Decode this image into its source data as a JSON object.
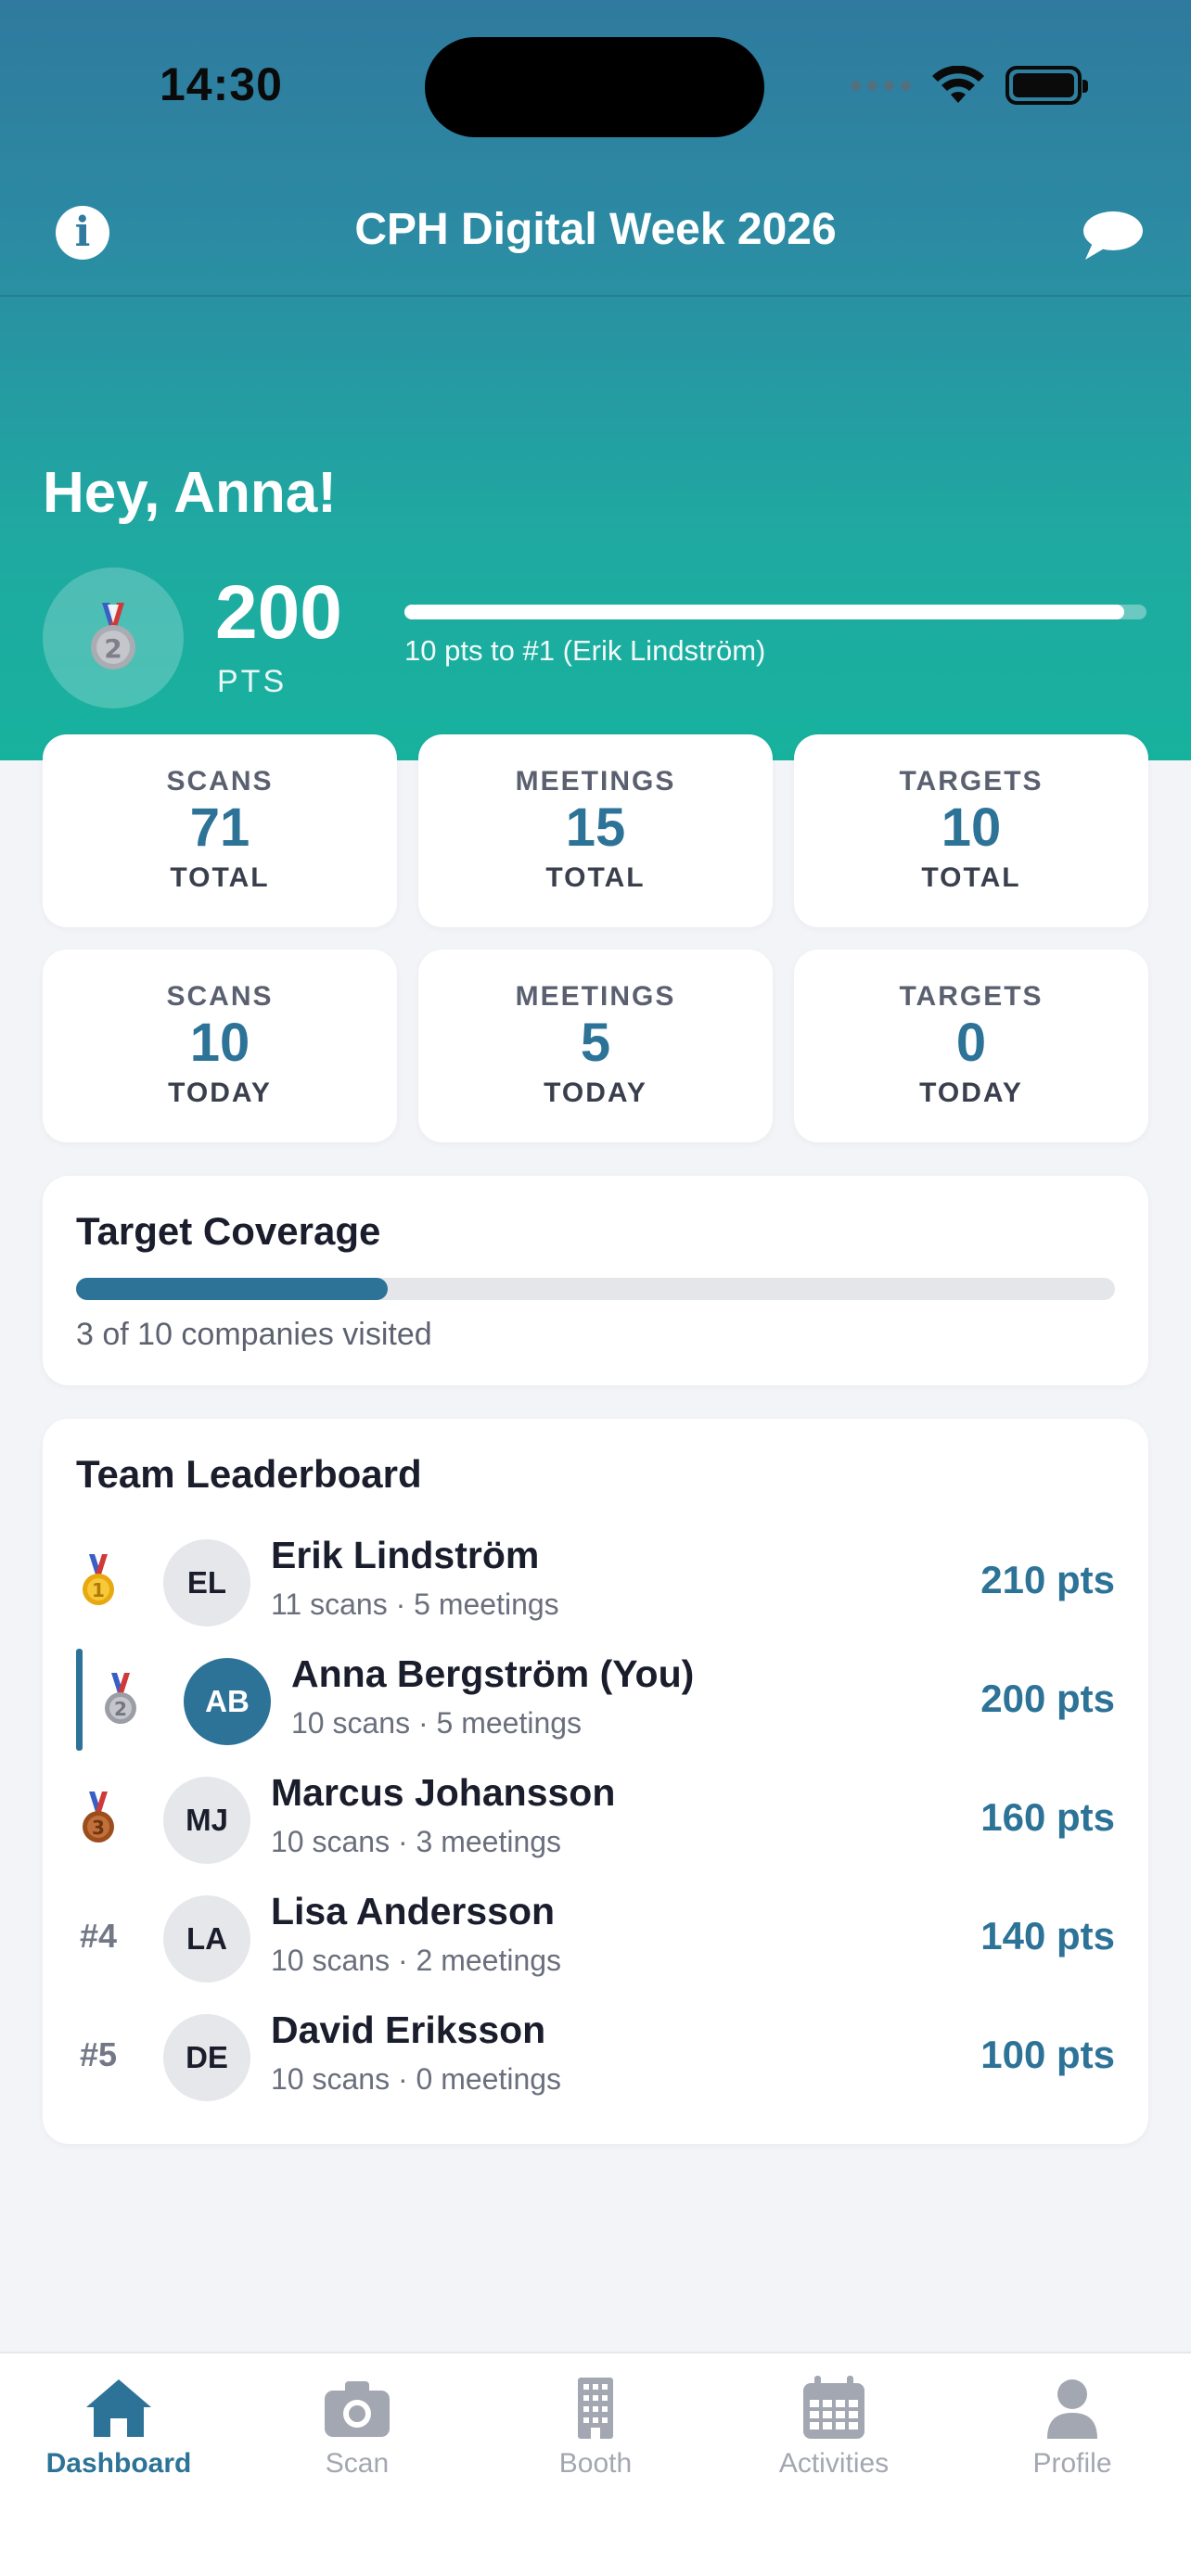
{
  "status_bar": {
    "time": "14:30"
  },
  "navbar": {
    "title": "CPH Digital Week 2026"
  },
  "hero": {
    "greeting": "Hey, Anna!",
    "points": "200",
    "points_unit": "PTS",
    "progress_fraction": 0.97,
    "progress_note": "10 pts to #1 (Erik Lindström)",
    "medal_rank": "2"
  },
  "stats": [
    {
      "label": "SCANS",
      "value": "71",
      "sub": "TOTAL"
    },
    {
      "label": "MEETINGS",
      "value": "15",
      "sub": "TOTAL"
    },
    {
      "label": "TARGETS",
      "value": "10",
      "sub": "TOTAL"
    },
    {
      "label": "SCANS",
      "value": "10",
      "sub": "TODAY"
    },
    {
      "label": "MEETINGS",
      "value": "5",
      "sub": "TODAY"
    },
    {
      "label": "TARGETS",
      "value": "0",
      "sub": "TODAY"
    }
  ],
  "coverage": {
    "title": "Target Coverage",
    "fraction": 0.3,
    "note": "3 of 10 companies visited"
  },
  "leaderboard": {
    "title": "Team Leaderboard",
    "rows": [
      {
        "rank": "1",
        "initials": "EL",
        "name": "Erik Lindström",
        "meta": "11 scans · 5 meetings",
        "points": "210 pts"
      },
      {
        "rank": "2",
        "initials": "AB",
        "name": "Anna Bergström (You)",
        "meta": "10 scans · 5 meetings",
        "points": "200 pts"
      },
      {
        "rank": "3",
        "initials": "MJ",
        "name": "Marcus Johansson",
        "meta": "10 scans · 3 meetings",
        "points": "160 pts"
      },
      {
        "rank": "#4",
        "initials": "LA",
        "name": "Lisa Andersson",
        "meta": "10 scans · 2 meetings",
        "points": "140 pts"
      },
      {
        "rank": "#5",
        "initials": "DE",
        "name": "David Eriksson",
        "meta": "10 scans · 0 meetings",
        "points": "100 pts"
      }
    ]
  },
  "tabs": [
    {
      "label": "Dashboard",
      "icon": "home-icon"
    },
    {
      "label": "Scan",
      "icon": "camera-icon"
    },
    {
      "label": "Booth",
      "icon": "building-icon"
    },
    {
      "label": "Activities",
      "icon": "calendar-icon"
    },
    {
      "label": "Profile",
      "icon": "person-icon"
    }
  ],
  "colors": {
    "accent": "#2d7397",
    "gradient_top": "#2f7a9e",
    "gradient_bottom": "#17b29e",
    "gold": "#f2b818",
    "silver": "#a9acb3",
    "bronze": "#b5602a"
  }
}
